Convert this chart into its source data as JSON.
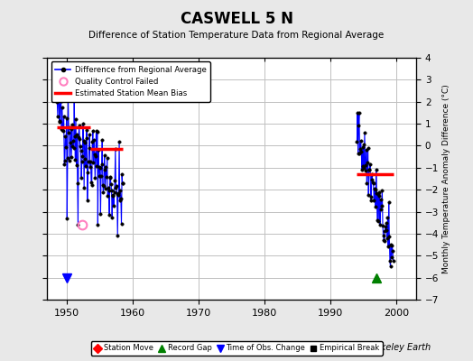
{
  "title": "CASWELL 5 N",
  "subtitle": "Difference of Station Temperature Data from Regional Average",
  "ylabel_right": "Monthly Temperature Anomaly Difference (°C)",
  "xlim": [
    1947,
    2003
  ],
  "ylim": [
    -7,
    4
  ],
  "yticks": [
    -7,
    -6,
    -5,
    -4,
    -3,
    -2,
    -1,
    0,
    1,
    2,
    3,
    4
  ],
  "xticks": [
    1950,
    1960,
    1970,
    1980,
    1990,
    2000
  ],
  "background_color": "#e8e8e8",
  "plot_bg_color": "#ffffff",
  "grid_color": "#c0c0c0",
  "bias1_y": 0.85,
  "bias1_x_start": 1948.5,
  "bias1_x_end": 1953.5,
  "bias2_y": -0.15,
  "bias2_x_start": 1953.5,
  "bias2_x_end": 1958.5,
  "bias3_y": -1.3,
  "bias3_x_start": 1994.0,
  "bias3_x_end": 1999.5,
  "time_of_obs_change_x": 1950.0,
  "time_of_obs_change_y": -6.0,
  "record_gap_x": 1997.0,
  "record_gap_y": -6.0,
  "qc_failed_x": 1952.3,
  "qc_failed_y": -3.6,
  "seg1_start": 1948.5,
  "seg1_end": 1958.5,
  "seg2_start": 1994.0,
  "seg2_end": 1999.5
}
